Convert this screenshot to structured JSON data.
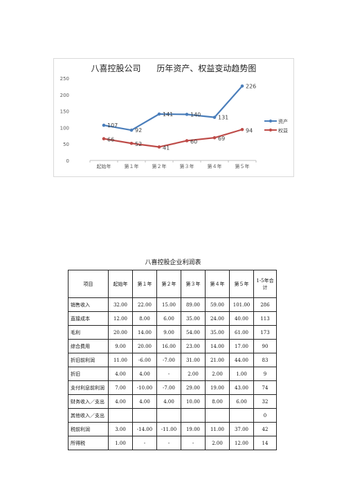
{
  "chart_data": {
    "type": "line",
    "title": "八喜控股公司      历年资产、权益变动趋势图",
    "categories": [
      "起始年",
      "第１年",
      "第２年",
      "第３年",
      "第４年",
      "第５年"
    ],
    "series": [
      {
        "name": "资产",
        "values": [
          107,
          92,
          141,
          140,
          131,
          226
        ],
        "color": "#4a7ebb"
      },
      {
        "name": "权益",
        "values": [
          66,
          52,
          41,
          60,
          69,
          94
        ],
        "color": "#be4b48"
      }
    ],
    "ylim": [
      0,
      250
    ],
    "yticks": [
      0,
      50,
      100,
      150,
      200,
      250
    ],
    "grid": false,
    "legend": "right"
  },
  "table": {
    "title": "八喜控股企业利润表",
    "headers": [
      "项目",
      "起始年",
      "第１年",
      "第２年",
      "第３年",
      "第４年",
      "第５年",
      "1-5年合计"
    ],
    "rows": [
      [
        "销售收入",
        "32.00",
        "22.00",
        "15.00",
        "89.00",
        "59.00",
        "101.00",
        "286"
      ],
      [
        "直接成本",
        "12.00",
        "8.00",
        "6.00",
        "35.00",
        "24.00",
        "40.00",
        "113"
      ],
      [
        "毛利",
        "20.00",
        "14.00",
        "9.00",
        "54.00",
        "35.00",
        "61.00",
        "173"
      ],
      [
        "综合费用",
        "9.00",
        "20.00",
        "16.00",
        "23.00",
        "14.00",
        "17.00",
        "90"
      ],
      [
        "折旧前利润",
        "11.00",
        "-6.00",
        "-7.00",
        "31.00",
        "21.00",
        "44.00",
        "83"
      ],
      [
        "折旧",
        "4.00",
        "4.00",
        "-",
        "2.00",
        "2.00",
        "1.00",
        "9"
      ],
      [
        "支付利息前利润",
        "7.00",
        "-10.00",
        "-7.00",
        "29.00",
        "19.00",
        "43.00",
        "74"
      ],
      [
        "财务收入／支出",
        "4.00",
        "4.00",
        "4.00",
        "10.00",
        "8.00",
        "6.00",
        "32"
      ],
      [
        "其他收入／支出",
        "",
        "",
        "",
        "",
        "",
        "",
        "0"
      ],
      [
        "税前利润",
        "3.00",
        "-14.00",
        "-11.00",
        "19.00",
        "11.00",
        "37.00",
        "42"
      ],
      [
        "所得税",
        "1.00",
        "-",
        "-",
        "-",
        "2.00",
        "12.00",
        "14"
      ]
    ]
  }
}
